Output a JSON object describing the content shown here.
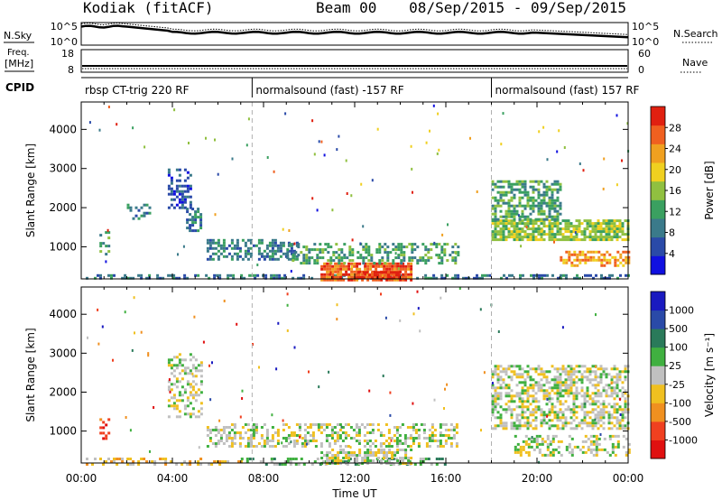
{
  "header": {
    "station": "Kodiak (fitACF)",
    "beam": "Beam 00",
    "date_range": "08/Sep/2015 - 09/Sep/2015"
  },
  "status_panels": {
    "noise": {
      "left_label": "N.Sky",
      "right_label": "N.Search",
      "left_ticks": [
        "10^5",
        "10^0"
      ],
      "right_ticks": [
        "10^5",
        "10^0"
      ]
    },
    "freq": {
      "left_label_1": "Freq.",
      "left_label_2": "[MHz]",
      "left_ticks": [
        "18",
        "8"
      ],
      "right_label": "Nave",
      "right_ticks": [
        "60",
        "0"
      ]
    },
    "cpid": {
      "label": "CPID",
      "segments": [
        {
          "name": "rbsp CT-trig 220 RF",
          "start_hour": 0.0
        },
        {
          "name": "normalsound (fast) -157 RF",
          "start_hour": 7.5
        },
        {
          "name": "normalsound (fast) 157 RF",
          "start_hour": 18.0
        }
      ]
    }
  },
  "chart_data": [
    {
      "type": "heatmap",
      "name": "power",
      "ylabel": "Slant Range [km]",
      "xlim_hours": [
        0,
        24
      ],
      "ylim": [
        180,
        4700
      ],
      "yticks": [
        1000,
        2000,
        3000,
        4000
      ],
      "colorbar": {
        "label": "Power [dB]",
        "ticks": [
          "4",
          "8",
          "12",
          "16",
          "20",
          "24",
          "28"
        ],
        "colors": [
          "#1010e0",
          "#2a4aa8",
          "#3a7a8a",
          "#3aa060",
          "#90c040",
          "#f0d020",
          "#f0a020",
          "#f06020",
          "#e02010"
        ]
      },
      "mode_boundaries_hours": [
        7.5,
        18.0
      ],
      "regions": [
        {
          "t0": 0.2,
          "t1": 24.0,
          "r0": 180,
          "r1": 300,
          "level": 2,
          "d": 0.45
        },
        {
          "t0": 10.5,
          "t1": 14.5,
          "r0": 180,
          "r1": 600,
          "level": 7,
          "d": 0.8
        },
        {
          "t0": 12.0,
          "t1": 14.0,
          "r0": 200,
          "r1": 380,
          "level": 8,
          "d": 0.85
        },
        {
          "t0": 5.5,
          "t1": 9.5,
          "r0": 700,
          "r1": 1200,
          "level": 2,
          "d": 0.6
        },
        {
          "t0": 9.0,
          "t1": 16.5,
          "r0": 600,
          "r1": 1100,
          "level": 3,
          "d": 0.45
        },
        {
          "t0": 18.0,
          "t1": 24.0,
          "r0": 1200,
          "r1": 1700,
          "level": 4,
          "d": 0.8
        },
        {
          "t0": 18.0,
          "t1": 21.0,
          "r0": 1700,
          "r1": 2700,
          "level": 3,
          "d": 0.55
        },
        {
          "t0": 21.0,
          "t1": 24.0,
          "r0": 500,
          "r1": 900,
          "level": 6,
          "d": 0.5
        },
        {
          "t0": 3.8,
          "t1": 4.8,
          "r0": 2000,
          "r1": 3000,
          "level": 1,
          "d": 0.45
        },
        {
          "t0": 4.6,
          "t1": 5.3,
          "r0": 1400,
          "r1": 2000,
          "level": 2,
          "d": 0.6
        },
        {
          "t0": 2.0,
          "t1": 3.0,
          "r0": 1700,
          "r1": 2100,
          "level": 2,
          "d": 0.4
        },
        {
          "t0": 0.8,
          "t1": 1.2,
          "r0": 800,
          "r1": 1400,
          "level": 3,
          "d": 0.3
        }
      ]
    },
    {
      "type": "heatmap",
      "name": "velocity",
      "ylabel": "Slant Range [km]",
      "xlabel": "Time UT",
      "xlim_hours": [
        0,
        24
      ],
      "xticks": [
        "00:00",
        "04:00",
        "08:00",
        "12:00",
        "16:00",
        "20:00",
        "00:00"
      ],
      "ylim": [
        180,
        4700
      ],
      "yticks": [
        1000,
        2000,
        3000,
        4000
      ],
      "colorbar": {
        "label": "Velocity [m s^-1]",
        "ticks": [
          "-1000",
          "-500",
          "-100",
          "-25",
          "25",
          "100",
          "500",
          "1000"
        ],
        "colors": [
          "#e01010",
          "#f04020",
          "#f09020",
          "#f0c020",
          "#c0c0c0",
          "#40b040",
          "#2a7a5a",
          "#2a4aa8",
          "#1a1ac0"
        ]
      },
      "mode_boundaries_hours": [
        7.5,
        18.0
      ],
      "regions": [
        {
          "t0": 5.5,
          "t1": 16.5,
          "r0": 600,
          "r1": 1200,
          "level": 4,
          "d": 0.45
        },
        {
          "t0": 18.0,
          "t1": 24.0,
          "r0": 1100,
          "r1": 2700,
          "level": 4,
          "d": 0.55
        },
        {
          "t0": 0.2,
          "t1": 7.0,
          "r0": 180,
          "r1": 320,
          "level": 3,
          "d": 0.35
        },
        {
          "t0": 7.0,
          "t1": 16.0,
          "r0": 180,
          "r1": 320,
          "level": 5,
          "d": 0.35
        },
        {
          "t0": 10.5,
          "t1": 14.5,
          "r0": 180,
          "r1": 550,
          "level": 4,
          "d": 0.55
        },
        {
          "t0": 0.8,
          "t1": 1.2,
          "r0": 800,
          "r1": 1400,
          "level": 1,
          "d": 0.35
        },
        {
          "t0": 3.8,
          "t1": 5.3,
          "r0": 1400,
          "r1": 3000,
          "level": 4,
          "d": 0.35
        },
        {
          "t0": 19.0,
          "t1": 24.0,
          "r0": 400,
          "r1": 900,
          "level": 4,
          "d": 0.35
        }
      ]
    }
  ]
}
